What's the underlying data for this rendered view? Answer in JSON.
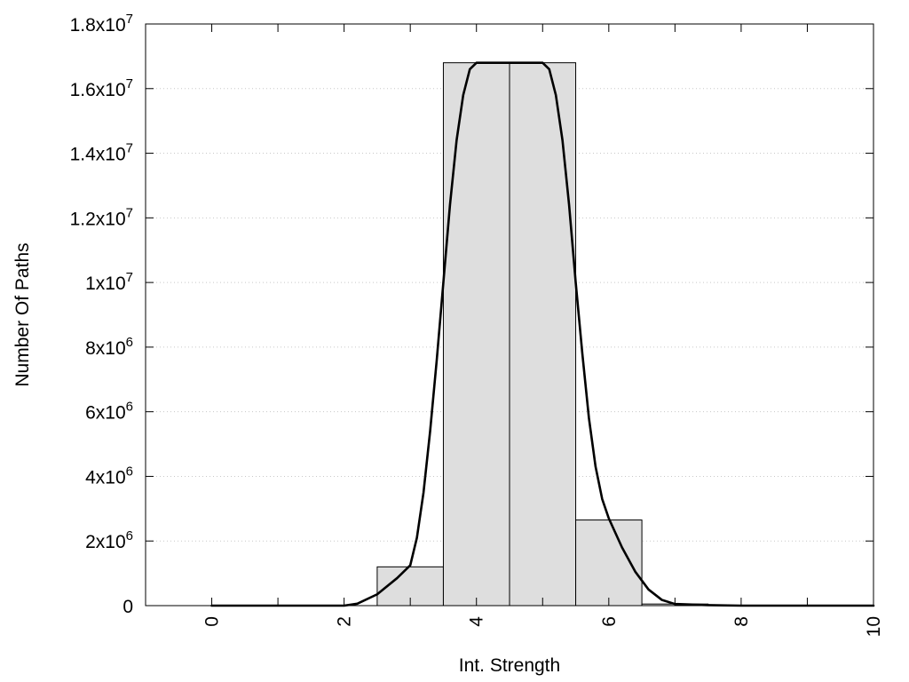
{
  "chart_data": {
    "type": "bar",
    "xlabel": "Int. Strength",
    "ylabel": "Number Of Paths",
    "xlim": [
      -1,
      10
    ],
    "ylim": [
      0,
      18000000
    ],
    "grid": {
      "y": true,
      "x": false,
      "style": "dotted"
    },
    "x_ticks": [
      {
        "value": 0,
        "label": "0"
      },
      {
        "value": 2,
        "label": "2"
      },
      {
        "value": 4,
        "label": "4"
      },
      {
        "value": 6,
        "label": "6"
      },
      {
        "value": 8,
        "label": "8"
      },
      {
        "value": 10,
        "label": "10"
      }
    ],
    "y_ticks": [
      {
        "value": 0,
        "mantissa": "0",
        "exponent": ""
      },
      {
        "value": 2000000,
        "mantissa": "2x10",
        "exponent": "6"
      },
      {
        "value": 4000000,
        "mantissa": "4x10",
        "exponent": "6"
      },
      {
        "value": 6000000,
        "mantissa": "6x10",
        "exponent": "6"
      },
      {
        "value": 8000000,
        "mantissa": "8x10",
        "exponent": "6"
      },
      {
        "value": 10000000,
        "mantissa": "1x10",
        "exponent": "7"
      },
      {
        "value": 12000000,
        "mantissa": "1.2x10",
        "exponent": "7"
      },
      {
        "value": 14000000,
        "mantissa": "1.4x10",
        "exponent": "7"
      },
      {
        "value": 16000000,
        "mantissa": "1.6x10",
        "exponent": "7"
      },
      {
        "value": 18000000,
        "mantissa": "1.8x10",
        "exponent": "7"
      }
    ],
    "bar_width": 1,
    "bars": [
      {
        "x": 0,
        "y": 0
      },
      {
        "x": 1,
        "y": 0
      },
      {
        "x": 2,
        "y": 0
      },
      {
        "x": 3,
        "y": 1200000
      },
      {
        "x": 4,
        "y": 16800000
      },
      {
        "x": 5,
        "y": 16800000
      },
      {
        "x": 6,
        "y": 2650000
      },
      {
        "x": 7,
        "y": 50000
      },
      {
        "x": 8,
        "y": 0
      },
      {
        "x": 9,
        "y": 0
      },
      {
        "x": 10,
        "y": 0
      }
    ],
    "curve": [
      {
        "x": 0,
        "y": 0
      },
      {
        "x": 1,
        "y": 0
      },
      {
        "x": 2,
        "y": 0
      },
      {
        "x": 2.2,
        "y": 60000
      },
      {
        "x": 2.5,
        "y": 350000
      },
      {
        "x": 2.8,
        "y": 850000
      },
      {
        "x": 3,
        "y": 1250000
      },
      {
        "x": 3.1,
        "y": 2100000
      },
      {
        "x": 3.2,
        "y": 3500000
      },
      {
        "x": 3.3,
        "y": 5400000
      },
      {
        "x": 3.4,
        "y": 7600000
      },
      {
        "x": 3.5,
        "y": 10000000
      },
      {
        "x": 3.6,
        "y": 12400000
      },
      {
        "x": 3.7,
        "y": 14400000
      },
      {
        "x": 3.8,
        "y": 15800000
      },
      {
        "x": 3.9,
        "y": 16600000
      },
      {
        "x": 4,
        "y": 16800000
      },
      {
        "x": 5,
        "y": 16800000
      },
      {
        "x": 5.1,
        "y": 16600000
      },
      {
        "x": 5.2,
        "y": 15800000
      },
      {
        "x": 5.3,
        "y": 14400000
      },
      {
        "x": 5.4,
        "y": 12400000
      },
      {
        "x": 5.5,
        "y": 10000000
      },
      {
        "x": 5.6,
        "y": 7800000
      },
      {
        "x": 5.7,
        "y": 5800000
      },
      {
        "x": 5.8,
        "y": 4300000
      },
      {
        "x": 5.9,
        "y": 3300000
      },
      {
        "x": 6,
        "y": 2700000
      },
      {
        "x": 6.2,
        "y": 1800000
      },
      {
        "x": 6.4,
        "y": 1050000
      },
      {
        "x": 6.6,
        "y": 500000
      },
      {
        "x": 6.8,
        "y": 180000
      },
      {
        "x": 7,
        "y": 50000
      },
      {
        "x": 7.5,
        "y": 15000
      },
      {
        "x": 8,
        "y": 0
      },
      {
        "x": 9,
        "y": 0
      },
      {
        "x": 10,
        "y": 0
      }
    ],
    "colors": {
      "bar_fill": "#dedede",
      "bar_stroke": "#000000",
      "curve": "#000000",
      "grid": "#c8c8c8",
      "frame": "#000000"
    }
  }
}
